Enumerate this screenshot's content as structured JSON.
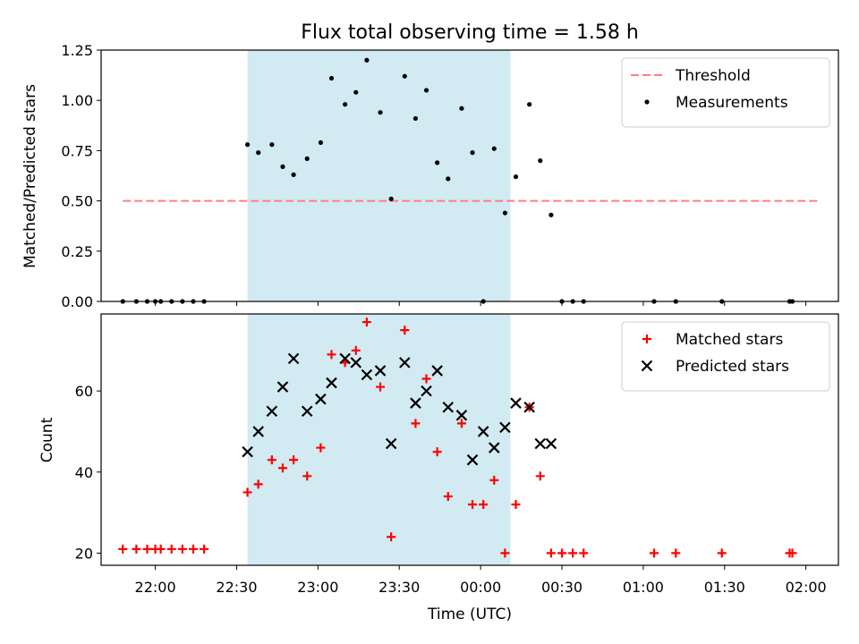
{
  "chart_data": [
    {
      "type": "scatter",
      "title": "Flux total observing time = 1.58 h",
      "xlabel": "",
      "ylabel": "Matched/Predicted stars",
      "xlim": [
        "21:40",
        "02:12"
      ],
      "ylim": [
        0,
        1.25
      ],
      "yticks": [
        0.0,
        0.25,
        0.5,
        0.75,
        1.0,
        1.25
      ],
      "yticklabels": [
        "0.00",
        "0.25",
        "0.50",
        "0.75",
        "1.00",
        "1.25"
      ],
      "shaded_region": [
        "22:34",
        "00:11"
      ],
      "shade_color": "#add8e6",
      "threshold": {
        "name": "Threshold",
        "value": 0.5,
        "x": [
          "21:48",
          "02:05"
        ],
        "color": "#ff7f7f"
      },
      "legend": {
        "position": "top-right",
        "entries": [
          "Threshold",
          "Measurements"
        ]
      },
      "series": [
        {
          "name": "Measurements",
          "color": "#000000",
          "marker": "dot",
          "x": [
            "21:48",
            "21:53",
            "21:57",
            "22:00",
            "22:02",
            "22:06",
            "22:10",
            "22:14",
            "22:18",
            "22:34",
            "22:38",
            "22:43",
            "22:47",
            "22:51",
            "22:56",
            "23:01",
            "23:05",
            "23:10",
            "23:14",
            "23:18",
            "23:23",
            "23:27",
            "23:32",
            "23:36",
            "23:40",
            "23:44",
            "23:48",
            "23:53",
            "23:57",
            "00:01",
            "00:05",
            "00:09",
            "00:13",
            "00:18",
            "00:22",
            "00:26",
            "00:30",
            "00:34",
            "00:38",
            "01:04",
            "01:12",
            "01:29",
            "01:54",
            "01:55"
          ],
          "y": [
            0,
            0,
            0,
            0,
            0,
            0,
            0,
            0,
            0,
            0.78,
            0.74,
            0.78,
            0.67,
            0.63,
            0.71,
            0.79,
            1.11,
            0.98,
            1.04,
            1.2,
            0.94,
            0.51,
            1.12,
            0.91,
            1.05,
            0.69,
            0.61,
            0.96,
            0.74,
            0,
            0.76,
            0.44,
            0.62,
            0.98,
            0.7,
            0.43,
            0,
            0,
            0,
            0,
            0,
            0,
            0,
            0
          ]
        }
      ]
    },
    {
      "type": "scatter",
      "title": "",
      "xlabel": "Time (UTC)",
      "ylabel": "Count",
      "xlim": [
        "21:40",
        "02:12"
      ],
      "ylim": [
        17,
        79
      ],
      "yticks": [
        20,
        40,
        60
      ],
      "yticklabels": [
        "20",
        "40",
        "60"
      ],
      "xticks": [
        "22:00",
        "22:30",
        "23:00",
        "23:30",
        "00:00",
        "00:30",
        "01:00",
        "01:30",
        "02:00"
      ],
      "shaded_region": [
        "22:34",
        "00:11"
      ],
      "shade_color": "#add8e6",
      "legend": {
        "position": "top-right",
        "entries": [
          "Matched stars",
          "Predicted stars"
        ]
      },
      "series": [
        {
          "name": "Matched stars",
          "color": "#ff0000",
          "marker": "plus",
          "x": [
            "21:48",
            "21:53",
            "21:57",
            "22:00",
            "22:02",
            "22:06",
            "22:10",
            "22:14",
            "22:18",
            "22:34",
            "22:38",
            "22:43",
            "22:47",
            "22:51",
            "22:56",
            "23:01",
            "23:05",
            "23:10",
            "23:14",
            "23:18",
            "23:23",
            "23:27",
            "23:32",
            "23:36",
            "23:40",
            "23:44",
            "23:48",
            "23:53",
            "23:57",
            "00:01",
            "00:05",
            "00:09",
            "00:13",
            "00:18",
            "00:22",
            "00:26",
            "00:30",
            "00:34",
            "00:38",
            "01:04",
            "01:12",
            "01:29",
            "01:54",
            "01:55"
          ],
          "y": [
            21,
            21,
            21,
            21,
            21,
            21,
            21,
            21,
            21,
            35,
            37,
            43,
            41,
            43,
            39,
            46,
            69,
            67,
            70,
            77,
            61,
            24,
            75,
            52,
            63,
            45,
            34,
            52,
            32,
            32,
            38,
            20,
            32,
            56,
            39,
            20,
            20,
            20,
            20,
            20,
            20,
            20,
            20,
            20
          ]
        },
        {
          "name": "Predicted stars",
          "color": "#000000",
          "marker": "x",
          "x": [
            "22:34",
            "22:38",
            "22:43",
            "22:47",
            "22:51",
            "22:56",
            "23:01",
            "23:05",
            "23:10",
            "23:14",
            "23:18",
            "23:23",
            "23:27",
            "23:32",
            "23:36",
            "23:40",
            "23:44",
            "23:48",
            "23:53",
            "23:57",
            "00:01",
            "00:05",
            "00:09",
            "00:13",
            "00:18",
            "00:22",
            "00:26"
          ],
          "y": [
            45,
            50,
            55,
            61,
            68,
            55,
            58,
            62,
            68,
            67,
            64,
            65,
            47,
            67,
            57,
            60,
            65,
            56,
            54,
            43,
            50,
            46,
            51,
            57,
            56,
            47,
            47
          ]
        }
      ]
    }
  ]
}
